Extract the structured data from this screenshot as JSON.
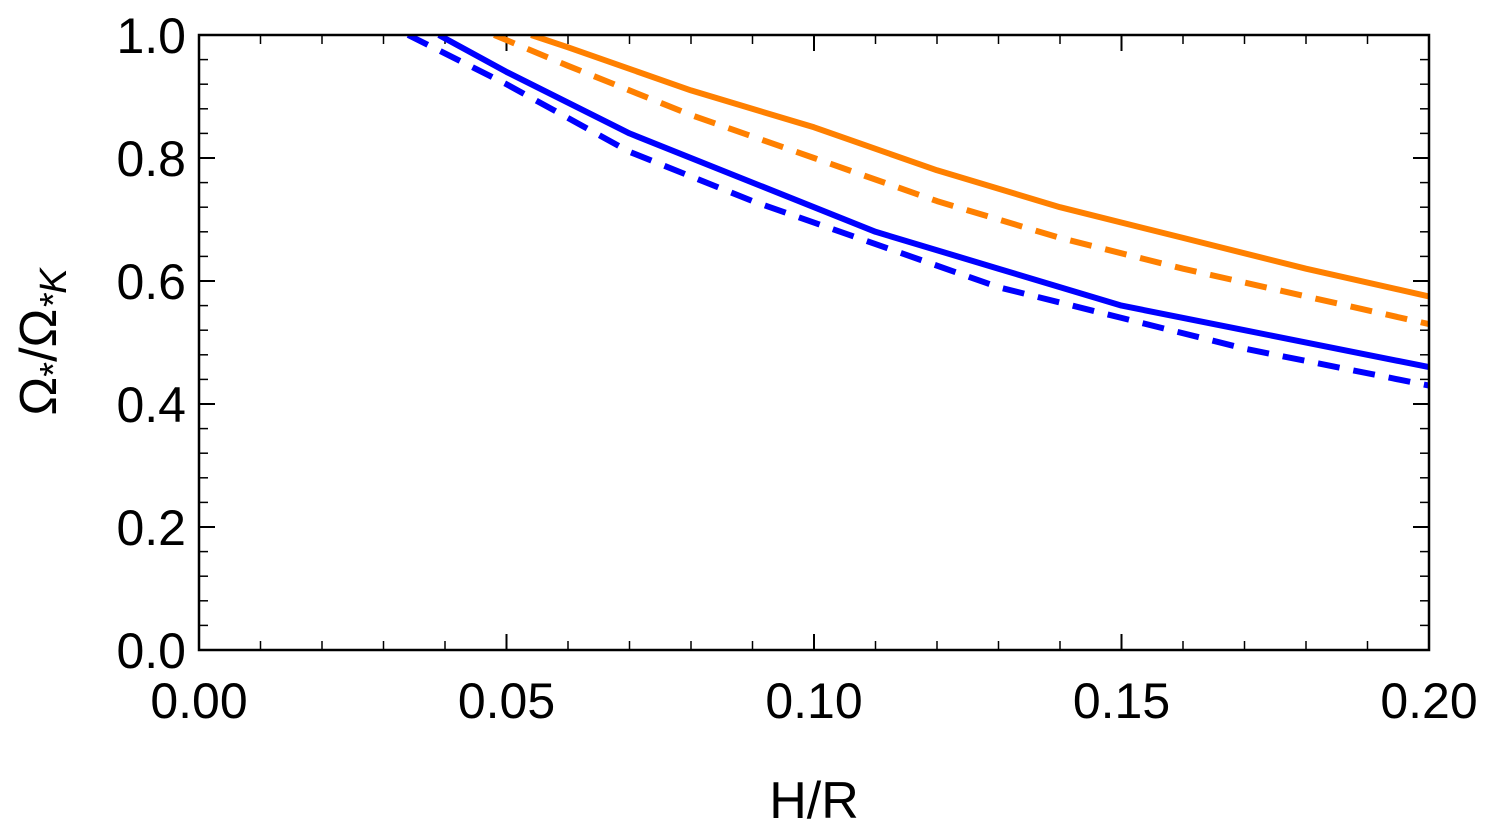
{
  "chart_data": {
    "type": "line",
    "xlabel": "H/R",
    "ylabel": {
      "parts": [
        "Ω",
        "*",
        "/Ω",
        "*K"
      ]
    },
    "xlim": [
      0.0,
      0.2
    ],
    "ylim": [
      0.0,
      1.0
    ],
    "x_ticks": [
      "0.00",
      "0.05",
      "0.10",
      "0.15",
      "0.20"
    ],
    "y_ticks": [
      "0.0",
      "0.2",
      "0.4",
      "0.6",
      "0.8",
      "1.0"
    ],
    "grid": false,
    "series": [
      {
        "color": "#ff8000",
        "dash": "solid",
        "x": [
          0.054,
          0.06,
          0.08,
          0.1,
          0.12,
          0.14,
          0.16,
          0.18,
          0.2
        ],
        "y": [
          1.0,
          0.98,
          0.91,
          0.85,
          0.78,
          0.72,
          0.67,
          0.62,
          0.575
        ]
      },
      {
        "color": "#ff8000",
        "dash": "dashed",
        "x": [
          0.048,
          0.06,
          0.08,
          0.1,
          0.12,
          0.14,
          0.16,
          0.18,
          0.2
        ],
        "y": [
          1.0,
          0.95,
          0.87,
          0.8,
          0.73,
          0.67,
          0.62,
          0.575,
          0.53
        ]
      },
      {
        "color": "#0000ff",
        "dash": "solid",
        "x": [
          0.039,
          0.05,
          0.07,
          0.09,
          0.11,
          0.13,
          0.15,
          0.17,
          0.2
        ],
        "y": [
          1.0,
          0.94,
          0.84,
          0.76,
          0.68,
          0.62,
          0.56,
          0.52,
          0.46
        ]
      },
      {
        "color": "#0000ff",
        "dash": "dashed",
        "x": [
          0.034,
          0.05,
          0.07,
          0.09,
          0.11,
          0.13,
          0.15,
          0.17,
          0.2
        ],
        "y": [
          1.0,
          0.92,
          0.81,
          0.73,
          0.66,
          0.59,
          0.54,
          0.49,
          0.43
        ]
      }
    ]
  }
}
